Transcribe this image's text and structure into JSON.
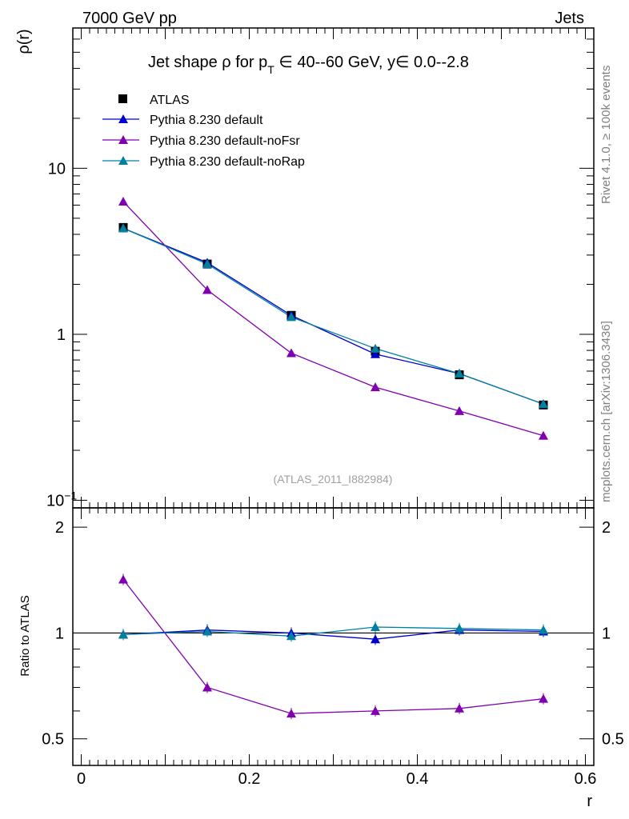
{
  "header": {
    "left": "7000 GeV pp",
    "right": "Jets"
  },
  "side_labels": {
    "rivet": "Rivet 4.1.0, ≥ 100k events",
    "mcplots": "mcplots.cern.ch [arXiv:1306.3436]"
  },
  "chart_data": [
    {
      "type": "line",
      "title": "Jet shape ρ for p_T ∈ 40--60 GeV, y ∈ 0.0--2.8",
      "title_parts": {
        "a": "Jet shape ρ for p",
        "sub": "T",
        "b": " ∈ 40--60 GeV, y∈ 0.0--2.8"
      },
      "ylabel": "ρ(r)",
      "yscale": "log",
      "ylim": [
        0.09,
        70
      ],
      "xlim": [
        -0.01,
        0.61
      ],
      "yticks": [
        {
          "v": 0.1,
          "base": "10",
          "exp": "−1"
        },
        {
          "v": 1,
          "base": "1",
          "exp": ""
        },
        {
          "v": 10,
          "base": "10",
          "exp": ""
        }
      ],
      "watermark": "(ATLAS_2011_I882984)",
      "x": [
        0.05,
        0.15,
        0.25,
        0.35,
        0.45,
        0.55
      ],
      "series": [
        {
          "name": "ATLAS",
          "color": "#000000",
          "marker": "square",
          "values": [
            4.4,
            2.65,
            1.3,
            0.79,
            0.57,
            0.375
          ]
        },
        {
          "name": "Pythia 8.230 default",
          "color": "#0000cc",
          "marker": "triangle",
          "values": [
            4.35,
            2.7,
            1.3,
            0.76,
            0.58,
            0.38
          ]
        },
        {
          "name": "Pythia 8.230 default-noFsr",
          "color": "#8000b0",
          "marker": "triangle",
          "values": [
            6.3,
            1.85,
            0.77,
            0.48,
            0.345,
            0.245
          ]
        },
        {
          "name": "Pythia 8.230 default-noRap",
          "color": "#0080a0",
          "marker": "triangle",
          "values": [
            4.35,
            2.65,
            1.27,
            0.82,
            0.58,
            0.38
          ]
        }
      ]
    },
    {
      "type": "line",
      "ylabel": "Ratio to ATLAS",
      "xlabel": "r",
      "ylim": [
        0.42,
        2.27
      ],
      "xlim": [
        -0.01,
        0.61
      ],
      "xticks": [
        "0",
        "0.2",
        "0.4",
        "0.6"
      ],
      "yticks": [
        "0.5",
        "1",
        "2"
      ],
      "x": [
        0.05,
        0.15,
        0.25,
        0.35,
        0.45,
        0.55
      ],
      "series": [
        {
          "name": "Pythia 8.230 default",
          "color": "#0000cc",
          "values": [
            0.99,
            1.02,
            1.0,
            0.96,
            1.02,
            1.01
          ]
        },
        {
          "name": "Pythia 8.230 default-noFsr",
          "color": "#8000b0",
          "values": [
            1.42,
            0.7,
            0.59,
            0.6,
            0.61,
            0.65
          ]
        },
        {
          "name": "Pythia 8.230 default-noRap",
          "color": "#0080a0",
          "values": [
            0.99,
            1.01,
            0.98,
            1.04,
            1.03,
            1.02
          ]
        }
      ]
    }
  ]
}
